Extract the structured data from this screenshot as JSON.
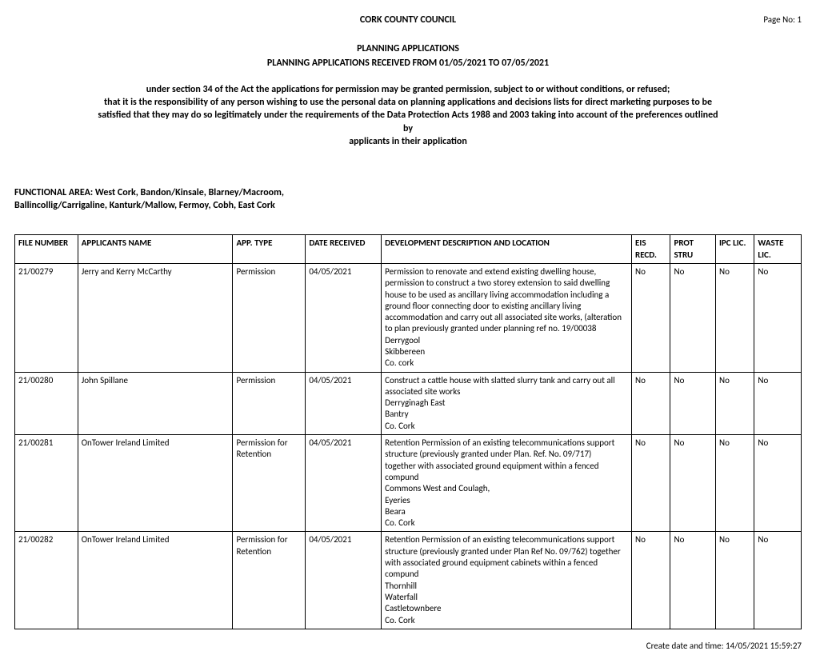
{
  "header": {
    "org": "CORK COUNTY COUNCIL",
    "page_no": "Page No: 1",
    "section": "PLANNING APPLICATIONS",
    "received_range": "PLANNING APPLICATIONS RECEIVED FROM 01/05/2021 TO 07/05/2021"
  },
  "notice": {
    "l1": "under section 34 of the Act the applications for permission may be granted permission, subject to or without conditions, or refused;",
    "l2": "that it is the responsibility of any person wishing to use the personal data on planning applications and decisions lists for direct marketing purposes to be",
    "l3": "satisfied that they may do so legitimately under the requirements of the Data Protection Acts 1988 and 2003 taking into account of the preferences outlined",
    "l4": "by",
    "l5": "applicants in their application"
  },
  "functional_area": {
    "l1": "FUNCTIONAL AREA: West Cork, Bandon/Kinsale, Blarney/Macroom,",
    "l2": "Ballincollig/Carrigaline, Kanturk/Mallow, Fermoy, Cobh, East Cork"
  },
  "table": {
    "columns": {
      "file_number": "FILE NUMBER",
      "applicants_name": "APPLICANTS NAME",
      "app_type": "APP. TYPE",
      "date_received": "DATE RECEIVED",
      "description": "DEVELOPMENT DESCRIPTION AND LOCATION",
      "eis_recd": "EIS RECD.",
      "prot_stru": "PROT STRU",
      "ipc_lic": "IPC LIC.",
      "waste_lic": "WASTE LIC."
    },
    "rows": [
      {
        "file_number": "21/00279",
        "applicants_name": "Jerry and Kerry McCarthy",
        "app_type": "Permission",
        "date_received": "04/05/2021",
        "description": [
          "Permission to renovate and extend existing dwelling house,",
          "permission to construct a two storey extension to said dwelling",
          "house to be used as ancillary living accommodation including a",
          "ground floor connecting door to existing ancillary living",
          "accommodation and carry out all associated site works, (alteration",
          "to plan previously granted under planning ref no. 19/00038",
          "Derrygool",
          "Skibbereen",
          "Co. cork"
        ],
        "eis_recd": "No",
        "prot_stru": "No",
        "ipc_lic": "No",
        "waste_lic": "No"
      },
      {
        "file_number": "21/00280",
        "applicants_name": "John Spillane",
        "app_type": "Permission",
        "date_received": "04/05/2021",
        "description": [
          "Construct a cattle house with slatted slurry tank and carry out all",
          "associated site works",
          "Derryginagh East",
          "Bantry",
          "Co. Cork"
        ],
        "eis_recd": "No",
        "prot_stru": "No",
        "ipc_lic": "No",
        "waste_lic": "No"
      },
      {
        "file_number": "21/00281",
        "applicants_name": "OnTower Ireland Limited",
        "app_type": "Permission for Retention",
        "date_received": "04/05/2021",
        "description": [
          "Retention Permission of an existing telecommunications support",
          "structure (previously granted under Plan. Ref. No. 09/717)",
          "together with associated ground equipment within a fenced",
          "compund",
          "Commons West and Coulagh,",
          "Eyeries",
          "Beara",
          "Co. Cork"
        ],
        "eis_recd": "No",
        "prot_stru": "No",
        "ipc_lic": "No",
        "waste_lic": "No"
      },
      {
        "file_number": "21/00282",
        "applicants_name": "OnTower  Ireland Limited",
        "app_type": "Permission for Retention",
        "date_received": "04/05/2021",
        "description": [
          "Retention Permission of an existing telecommunications support",
          "structure (previously granted under Plan Ref No. 09/762) together",
          "with associated ground equipment cabinets within a fenced",
          "compund",
          "Thornhill",
          "Waterfall",
          "Castletownbere",
          "Co. Cork"
        ],
        "eis_recd": "No",
        "prot_stru": "No",
        "ipc_lic": "No",
        "waste_lic": "No"
      }
    ]
  },
  "footer": {
    "created": "Create date and time: 14/05/2021 15:59:27"
  }
}
